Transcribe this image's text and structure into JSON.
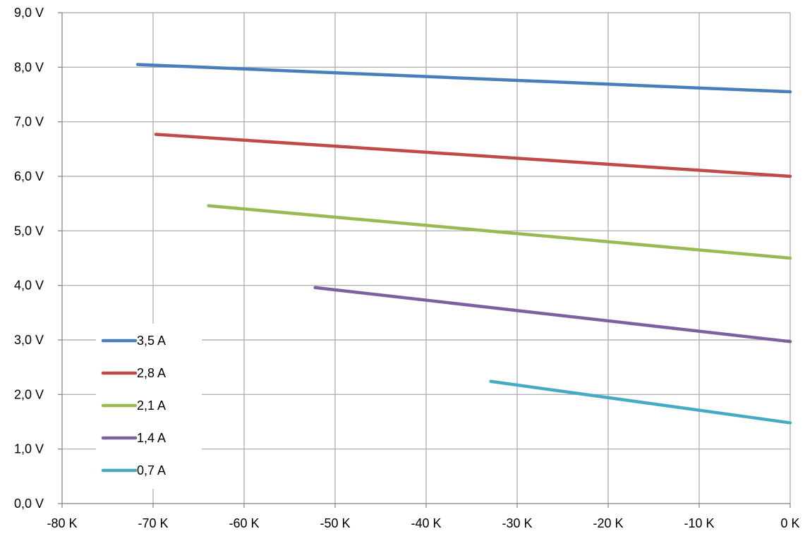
{
  "chart_data": {
    "type": "line",
    "title": "",
    "xlabel": "",
    "ylabel": "",
    "xlim": [
      -80,
      0
    ],
    "ylim": [
      0,
      9
    ],
    "grid": true,
    "legend_position": "bottom-left",
    "x_ticks": [
      {
        "value": -80,
        "label": "-80 K"
      },
      {
        "value": -70,
        "label": "-70 K"
      },
      {
        "value": -60,
        "label": "-60 K"
      },
      {
        "value": -50,
        "label": "-50 K"
      },
      {
        "value": -40,
        "label": "-40 K"
      },
      {
        "value": -30,
        "label": "-30 K"
      },
      {
        "value": -20,
        "label": "-20 K"
      },
      {
        "value": -10,
        "label": "-10 K"
      },
      {
        "value": 0,
        "label": "0 K"
      }
    ],
    "y_ticks": [
      {
        "value": 0,
        "label": "0,0 V"
      },
      {
        "value": 1,
        "label": "1,0 V"
      },
      {
        "value": 2,
        "label": "2,0 V"
      },
      {
        "value": 3,
        "label": "3,0 V"
      },
      {
        "value": 4,
        "label": "4,0 V"
      },
      {
        "value": 5,
        "label": "5,0 V"
      },
      {
        "value": 6,
        "label": "6,0 V"
      },
      {
        "value": 7,
        "label": "7,0 V"
      },
      {
        "value": 8,
        "label": "8,0 V"
      },
      {
        "value": 9,
        "label": "9,0 V"
      }
    ],
    "series": [
      {
        "name": "3,5 A",
        "color": "#4a7ebb",
        "x": [
          -71.7,
          0
        ],
        "y": [
          8.05,
          7.55
        ]
      },
      {
        "name": "2,8 A",
        "color": "#be4b48",
        "x": [
          -69.7,
          0
        ],
        "y": [
          6.77,
          6.0
        ]
      },
      {
        "name": "2,1 A",
        "color": "#98b954",
        "x": [
          -63.9,
          0
        ],
        "y": [
          5.46,
          4.5
        ]
      },
      {
        "name": "1,4 A",
        "color": "#7d60a0",
        "x": [
          -52.2,
          0
        ],
        "y": [
          3.96,
          2.97
        ]
      },
      {
        "name": "0,7 A",
        "color": "#46aac5",
        "x": [
          -32.9,
          0
        ],
        "y": [
          2.24,
          1.48
        ]
      }
    ]
  }
}
